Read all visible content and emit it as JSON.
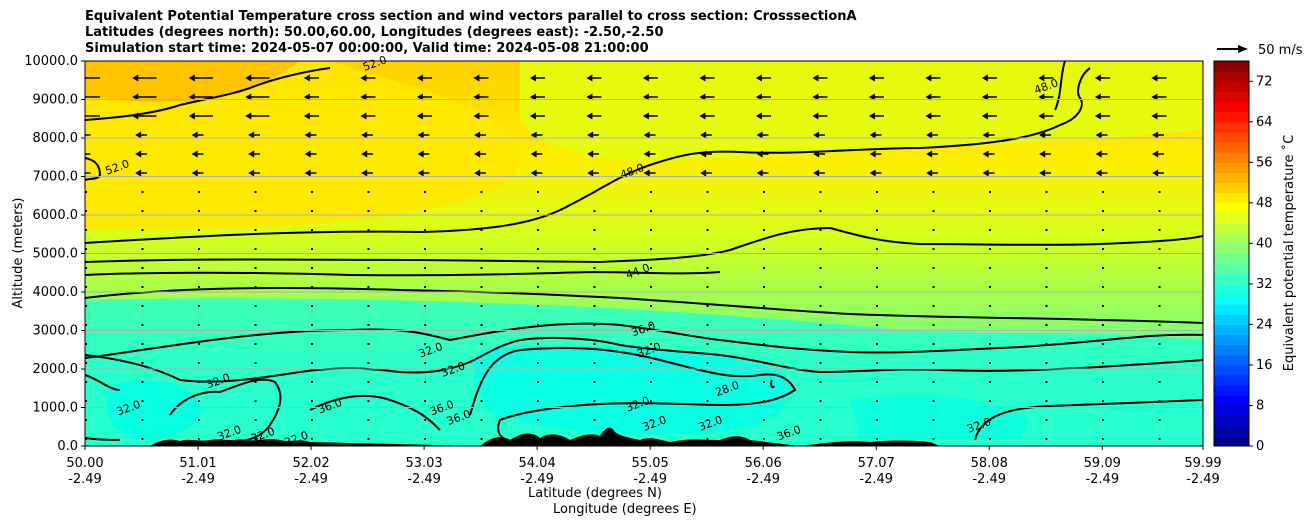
{
  "chart_data": {
    "type": "heatmap",
    "title_lines": [
      "Equivalent Potential Temperature cross section and wind vectors parallel to cross section: CrosssectionA",
      "Latitudes (degrees north): 50.00,60.00, Longitudes (degrees east): -2.50,-2.50",
      "Simulation start time: 2024-05-07 00:00:00, Valid time: 2024-05-08 21:00:00"
    ],
    "ylabel": "Altitude (meters)",
    "xlabel_lat": "Latitude (degrees N)",
    "xlabel_lon": "Longitude (degrees E)",
    "ylim": [
      0,
      10000
    ],
    "yticks": [
      "0.0",
      "1000.0",
      "2000.0",
      "3000.0",
      "4000.0",
      "5000.0",
      "6000.0",
      "7000.0",
      "8000.0",
      "9000.0",
      "10000.0"
    ],
    "ytick_values": [
      0,
      1000,
      2000,
      3000,
      4000,
      5000,
      6000,
      7000,
      8000,
      9000,
      10000
    ],
    "xlim": [
      50.0,
      59.99
    ],
    "xtick_values": [
      50.0,
      51.01,
      52.02,
      53.03,
      54.04,
      55.05,
      56.06,
      57.07,
      58.08,
      59.09,
      59.99
    ],
    "xticks_lat": [
      "50.00",
      "51.01",
      "52.02",
      "53.03",
      "54.04",
      "55.05",
      "56.06",
      "57.07",
      "58.08",
      "59.09",
      "59.99"
    ],
    "xticks_lon": [
      "-2.49",
      "-2.49",
      "-2.49",
      "-2.49",
      "-2.49",
      "-2.49",
      "-2.49",
      "-2.49",
      "-2.49",
      "-2.49",
      "-2.49"
    ],
    "colorbar": {
      "label": "Equivalent potential temperature $^\\circ$C",
      "label_display": "Equivalent potential temperature ˚C",
      "range": [
        0,
        76
      ],
      "ticks": [
        "0",
        "8",
        "16",
        "24",
        "32",
        "40",
        "48",
        "56",
        "64",
        "72"
      ],
      "tick_values": [
        0,
        8,
        16,
        24,
        32,
        40,
        48,
        56,
        64,
        72
      ]
    },
    "wind_reference": {
      "label": "50 m/s",
      "speed": 50
    },
    "contour_labels": [
      {
        "text": "52.0",
        "lat": 52.6,
        "alt": 9850
      },
      {
        "text": "52.0",
        "lat": 50.3,
        "alt": 7150
      },
      {
        "text": "48.0",
        "lat": 58.6,
        "alt": 9250
      },
      {
        "text": "48.0",
        "lat": 54.9,
        "alt": 7050
      },
      {
        "text": "44.0",
        "lat": 54.95,
        "alt": 4450
      },
      {
        "text": "36.0",
        "lat": 55.0,
        "alt": 2950
      },
      {
        "text": "32.0",
        "lat": 55.05,
        "alt": 2400
      },
      {
        "text": "32.0",
        "lat": 53.1,
        "alt": 2400
      },
      {
        "text": "32.0",
        "lat": 53.3,
        "alt": 1900
      },
      {
        "text": "32.0",
        "lat": 51.2,
        "alt": 1600
      },
      {
        "text": "32.0",
        "lat": 50.4,
        "alt": 900
      },
      {
        "text": "32.0",
        "lat": 54.95,
        "alt": 1000
      },
      {
        "text": "36.0",
        "lat": 52.2,
        "alt": 950
      },
      {
        "text": "36.0",
        "lat": 53.2,
        "alt": 900
      },
      {
        "text": "36.0",
        "lat": 53.35,
        "alt": 650
      },
      {
        "text": "28.0",
        "lat": 55.75,
        "alt": 1400
      },
      {
        "text": "36.0",
        "lat": 56.3,
        "alt": 250
      },
      {
        "text": "32.0",
        "lat": 58.0,
        "alt": 450
      },
      {
        "text": "32.0",
        "lat": 51.3,
        "alt": 250
      },
      {
        "text": "32.0",
        "lat": 51.6,
        "alt": 200
      },
      {
        "text": "32.0",
        "lat": 51.9,
        "alt": 100
      },
      {
        "text": "32.0",
        "lat": 55.1,
        "alt": 500
      },
      {
        "text": "32.0",
        "lat": 55.6,
        "alt": 500
      }
    ]
  }
}
